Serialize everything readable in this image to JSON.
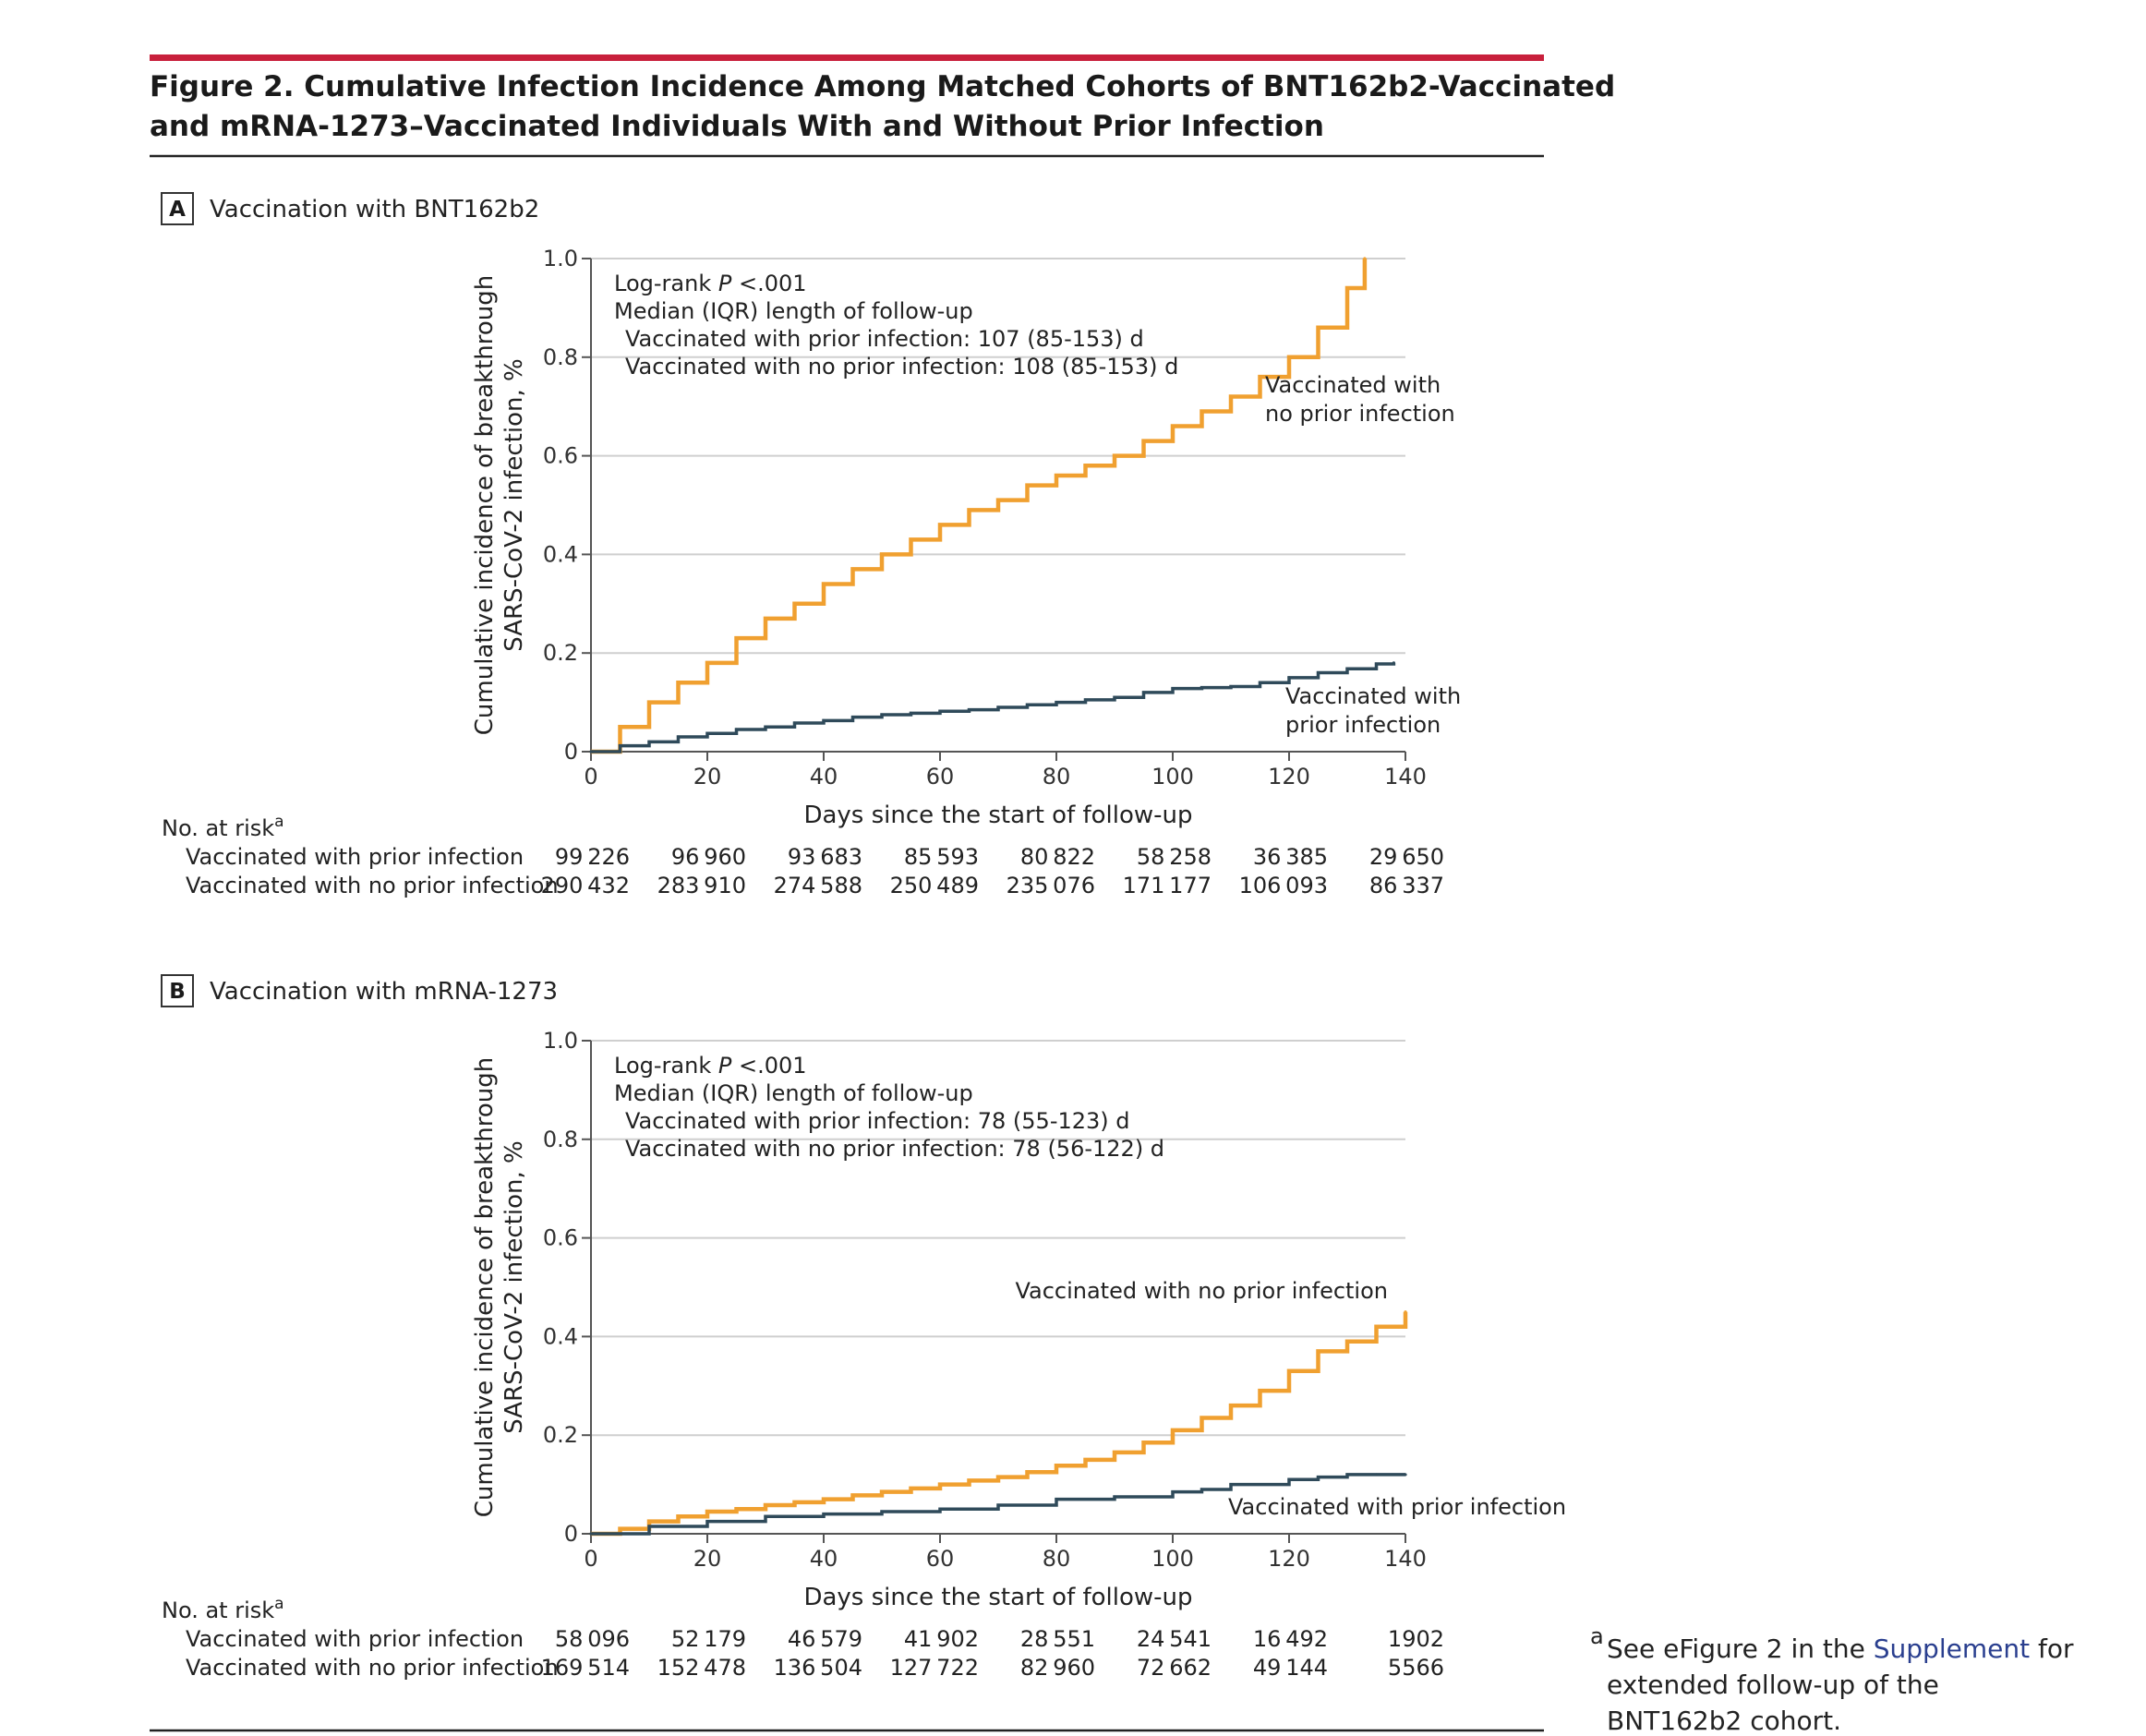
{
  "figure": {
    "title_line1": "Figure 2. Cumulative Infection Incidence Among Matched Cohorts of BNT162b2-Vaccinated",
    "title_line2": "and mRNA-1273–Vaccinated Individuals With and Without Prior Infection",
    "accent_color": "#c8203c"
  },
  "x_axis_label": "Days since the start of follow-up",
  "y_axis_label_line1": "Cumulative incidence of breakthrough",
  "y_axis_label_line2": "SARS-CoV-2 infection, %",
  "risk_table_heading": "No. at risk",
  "risk_table_heading_sup": "a",
  "footnote": {
    "marker": "a",
    "prefix": "See eFigure 2 in the ",
    "link": "Supplement",
    "suffix": " for",
    "line2": "extended follow-up of the",
    "line3": "BNT162b2 cohort."
  },
  "colors": {
    "no_prior": "#f0a030",
    "prior": "#2f4a5a",
    "grid": "#cfcfcf",
    "axis": "#555555"
  },
  "chart_data": [
    {
      "type": "line",
      "step": true,
      "panel_letter": "A",
      "panel_title": "Vaccination with BNT162b2",
      "xlim": [
        0,
        140
      ],
      "ylim": [
        0,
        1.0
      ],
      "x_ticks": [
        0,
        20,
        40,
        60,
        80,
        100,
        120,
        140
      ],
      "y_ticks": [
        0,
        0.2,
        0.4,
        0.6,
        0.8,
        1.0
      ],
      "y_tick_labels": [
        "0",
        "0.2",
        "0.4",
        "0.6",
        "0.8",
        "1.0"
      ],
      "grid": true,
      "annotation": {
        "line1_pre": "Log-rank ",
        "line1_italic": "P",
        "line1_post": " <.001",
        "line2": "Median (IQR) length of follow-up",
        "line3": "Vaccinated with prior infection: 107 (85-153) d",
        "line4": "Vaccinated with no prior infection: 108 (85-153) d"
      },
      "series": [
        {
          "name": "Vaccinated with no prior infection",
          "label_lines": [
            "Vaccinated with",
            "no prior infection"
          ],
          "color": "#f0a030",
          "x": [
            0,
            5,
            10,
            15,
            20,
            25,
            30,
            35,
            40,
            45,
            50,
            55,
            60,
            65,
            70,
            75,
            80,
            85,
            90,
            95,
            100,
            105,
            110,
            115,
            120,
            125,
            130,
            133
          ],
          "y": [
            0,
            0.05,
            0.1,
            0.14,
            0.18,
            0.23,
            0.27,
            0.3,
            0.34,
            0.37,
            0.4,
            0.43,
            0.46,
            0.49,
            0.51,
            0.54,
            0.56,
            0.58,
            0.6,
            0.63,
            0.66,
            0.69,
            0.72,
            0.76,
            0.8,
            0.86,
            0.94,
            1.0
          ]
        },
        {
          "name": "Vaccinated with prior infection",
          "label_lines": [
            "Vaccinated with",
            "prior infection"
          ],
          "color": "#2f4a5a",
          "x": [
            0,
            5,
            10,
            15,
            20,
            25,
            30,
            35,
            40,
            45,
            50,
            55,
            60,
            65,
            70,
            75,
            80,
            85,
            90,
            95,
            100,
            105,
            110,
            115,
            120,
            125,
            130,
            135,
            138
          ],
          "y": [
            0,
            0.012,
            0.02,
            0.03,
            0.037,
            0.045,
            0.05,
            0.058,
            0.063,
            0.07,
            0.075,
            0.078,
            0.082,
            0.085,
            0.09,
            0.095,
            0.1,
            0.105,
            0.11,
            0.12,
            0.128,
            0.13,
            0.132,
            0.14,
            0.15,
            0.16,
            0.168,
            0.178,
            0.18
          ]
        }
      ],
      "risk_rows": [
        {
          "label": "Vaccinated with prior infection",
          "values": [
            "99 226",
            "96 960",
            "93 683",
            "85 593",
            "80 822",
            "58 258",
            "36 385",
            "29 650"
          ]
        },
        {
          "label": "Vaccinated with no prior infection",
          "values": [
            "290 432",
            "283 910",
            "274 588",
            "250 489",
            "235 076",
            "171 177",
            "106 093",
            "86 337"
          ]
        }
      ]
    },
    {
      "type": "line",
      "step": true,
      "panel_letter": "B",
      "panel_title": "Vaccination with mRNA-1273",
      "xlim": [
        0,
        140
      ],
      "ylim": [
        0,
        1.0
      ],
      "x_ticks": [
        0,
        20,
        40,
        60,
        80,
        100,
        120,
        140
      ],
      "y_ticks": [
        0,
        0.2,
        0.4,
        0.6,
        0.8,
        1.0
      ],
      "y_tick_labels": [
        "0",
        "0.2",
        "0.4",
        "0.6",
        "0.8",
        "1.0"
      ],
      "grid": true,
      "annotation": {
        "line1_pre": "Log-rank ",
        "line1_italic": "P",
        "line1_post": " <.001",
        "line2": "Median (IQR) length of follow-up",
        "line3": "Vaccinated with prior infection: 78 (55-123) d",
        "line4": "Vaccinated with no prior infection: 78 (56-122) d"
      },
      "series": [
        {
          "name": "Vaccinated with no prior infection",
          "label_lines": [
            "Vaccinated with no prior infection"
          ],
          "color": "#f0a030",
          "x": [
            0,
            5,
            10,
            15,
            20,
            25,
            30,
            35,
            40,
            45,
            50,
            55,
            60,
            65,
            70,
            75,
            80,
            85,
            90,
            95,
            100,
            105,
            110,
            115,
            120,
            125,
            130,
            135,
            140
          ],
          "y": [
            0,
            0.01,
            0.025,
            0.035,
            0.045,
            0.05,
            0.058,
            0.064,
            0.07,
            0.078,
            0.085,
            0.092,
            0.1,
            0.108,
            0.115,
            0.125,
            0.138,
            0.15,
            0.165,
            0.185,
            0.21,
            0.235,
            0.26,
            0.29,
            0.33,
            0.37,
            0.39,
            0.42,
            0.45
          ]
        },
        {
          "name": "Vaccinated with prior infection",
          "label_lines": [
            "Vaccinated with prior infection"
          ],
          "color": "#2f4a5a",
          "x": [
            0,
            10,
            20,
            30,
            40,
            50,
            60,
            70,
            80,
            90,
            100,
            105,
            110,
            120,
            125,
            130,
            135,
            140
          ],
          "y": [
            0,
            0.015,
            0.025,
            0.035,
            0.04,
            0.045,
            0.05,
            0.058,
            0.07,
            0.075,
            0.085,
            0.09,
            0.1,
            0.11,
            0.115,
            0.12,
            0.12,
            0.12
          ]
        }
      ],
      "risk_rows": [
        {
          "label": "Vaccinated with prior infection",
          "values": [
            "58 096",
            "52 179",
            "46 579",
            "41 902",
            "28 551",
            "24 541",
            "16 492",
            "1902"
          ]
        },
        {
          "label": "Vaccinated with no prior infection",
          "values": [
            "169 514",
            "152 478",
            "136 504",
            "127 722",
            "82 960",
            "72 662",
            "49 144",
            "5566"
          ]
        }
      ]
    }
  ]
}
